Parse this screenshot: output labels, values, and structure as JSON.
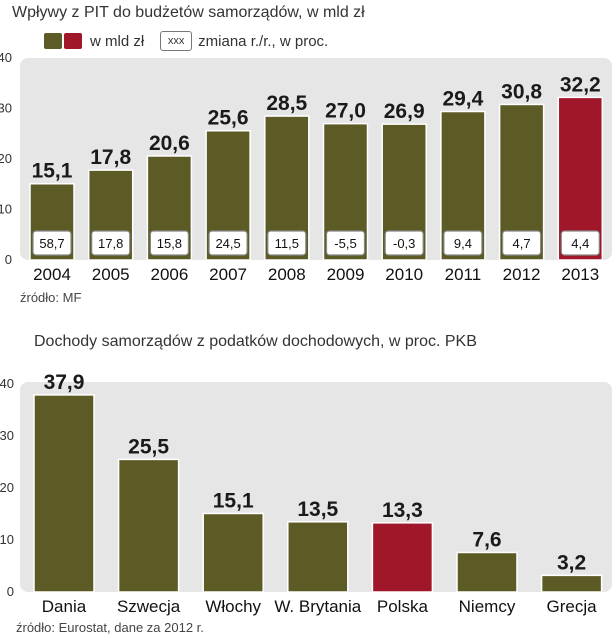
{
  "chart_data": [
    {
      "type": "bar",
      "title": "Wpływy z PIT do budżetów samorządów, w mld zł",
      "legend": {
        "value_label": "w mld zł",
        "box_text": "xxx",
        "change_label": "zmiana r./r., w proc."
      },
      "categories": [
        "2004",
        "2005",
        "2006",
        "2007",
        "2008",
        "2009",
        "2010",
        "2011",
        "2012",
        "2013"
      ],
      "values": [
        15.1,
        17.8,
        20.6,
        25.6,
        28.5,
        27.0,
        26.9,
        29.4,
        30.8,
        32.2
      ],
      "value_labels": [
        "15,1",
        "17,8",
        "20,6",
        "25,6",
        "28,5",
        "27,0",
        "26,9",
        "29,4",
        "30,8",
        "32,2"
      ],
      "change_labels": [
        "58,7",
        "17,8",
        "15,8",
        "24,5",
        "11,5",
        "-5,5",
        "-0,3",
        "9,4",
        "4,7",
        "4,4"
      ],
      "highlight_index": 9,
      "yticks": [
        "0",
        "10",
        "20",
        "30",
        "40"
      ],
      "ylim": [
        0,
        40
      ],
      "source": "źródło: MF",
      "colors": {
        "bar": "#5c5a25",
        "highlight": "#a0172a",
        "panel": "#e6e6e6"
      }
    },
    {
      "type": "bar",
      "title": "Dochody samorządów z podatków dochodowych, w proc. PKB",
      "categories": [
        "Dania",
        "Szwecja",
        "Włochy",
        "W. Brytania",
        "Polska",
        "Niemcy",
        "Grecja"
      ],
      "values": [
        37.9,
        25.5,
        15.1,
        13.5,
        13.3,
        7.6,
        3.2
      ],
      "value_labels": [
        "37,9",
        "25,5",
        "15,1",
        "13,5",
        "13,3",
        "7,6",
        "3,2"
      ],
      "highlight_index": 4,
      "yticks": [
        "0",
        "10",
        "20",
        "30",
        "40"
      ],
      "ylim": [
        0,
        40
      ],
      "source": "źródło: Eurostat, dane za 2012 r.",
      "colors": {
        "bar": "#5c5a25",
        "highlight": "#a0172a",
        "panel": "#e6e6e6"
      }
    }
  ]
}
